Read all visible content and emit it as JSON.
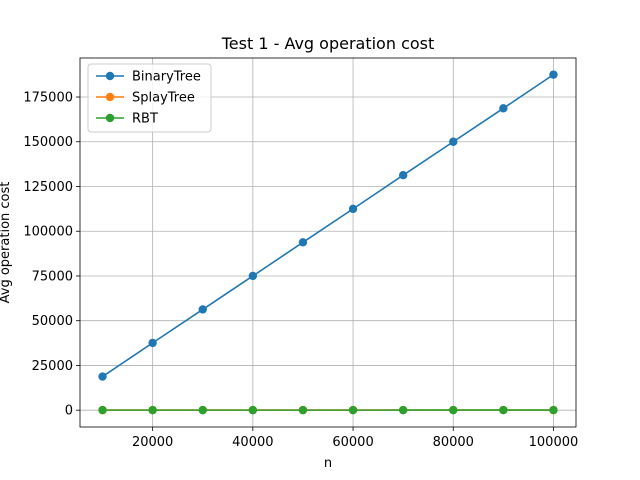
{
  "chart_data": {
    "type": "line",
    "title": "Test 1 - Avg operation cost",
    "xlabel": "n",
    "ylabel": "Avg operation cost",
    "x": [
      10000,
      20000,
      30000,
      40000,
      50000,
      60000,
      70000,
      80000,
      90000,
      100000
    ],
    "xlim": [
      5500,
      104500
    ],
    "ylim": [
      -9400,
      196800
    ],
    "xticks": [
      20000,
      40000,
      60000,
      80000,
      100000
    ],
    "yticks": [
      0,
      25000,
      50000,
      75000,
      100000,
      125000,
      150000,
      175000
    ],
    "grid": true,
    "legend_position": "top-left",
    "series": [
      {
        "name": "BinaryTree",
        "color": "#1f77b4",
        "values": [
          18800,
          37600,
          56300,
          75000,
          93800,
          112500,
          131300,
          150000,
          168700,
          187500
        ]
      },
      {
        "name": "SplayTree",
        "color": "#ff7f0e",
        "values": [
          40,
          42,
          44,
          45,
          46,
          47,
          48,
          49,
          50,
          50
        ]
      },
      {
        "name": "RBT",
        "color": "#2ca02c",
        "values": [
          30,
          32,
          33,
          34,
          35,
          35,
          36,
          36,
          37,
          37
        ]
      }
    ]
  }
}
